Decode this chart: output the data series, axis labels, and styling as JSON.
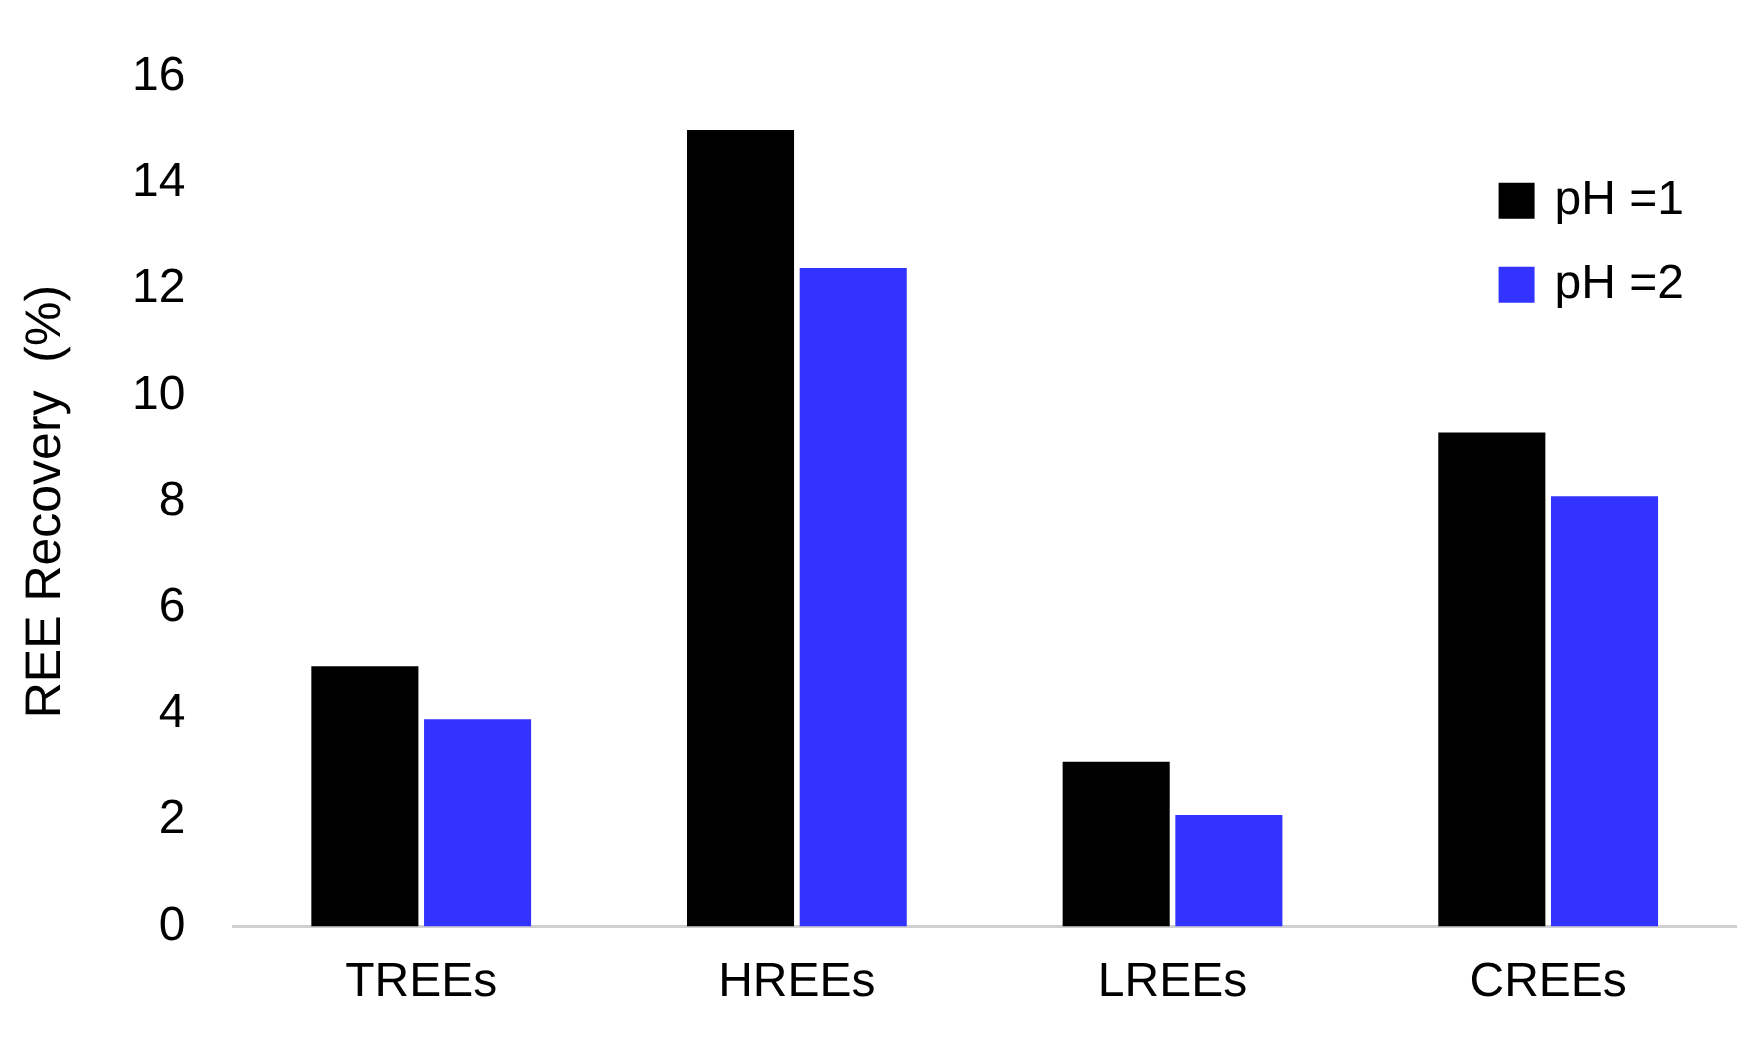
{
  "chart_data": {
    "type": "bar",
    "ylabel": "REE Recovery  (%)",
    "categories": [
      "TREEs",
      "HREEs",
      "LREEs",
      "CREEs"
    ],
    "series": [
      {
        "name": "pH =1",
        "color": "#000000",
        "values": [
          4.9,
          15.0,
          3.1,
          9.3
        ]
      },
      {
        "name": "pH =2",
        "color": "#3333ff",
        "values": [
          3.9,
          12.4,
          2.1,
          8.1
        ]
      }
    ],
    "ylim": [
      0,
      16
    ],
    "yticks": [
      0,
      2,
      4,
      6,
      8,
      10,
      12,
      14,
      16
    ],
    "grid": false,
    "legend": "top right"
  }
}
